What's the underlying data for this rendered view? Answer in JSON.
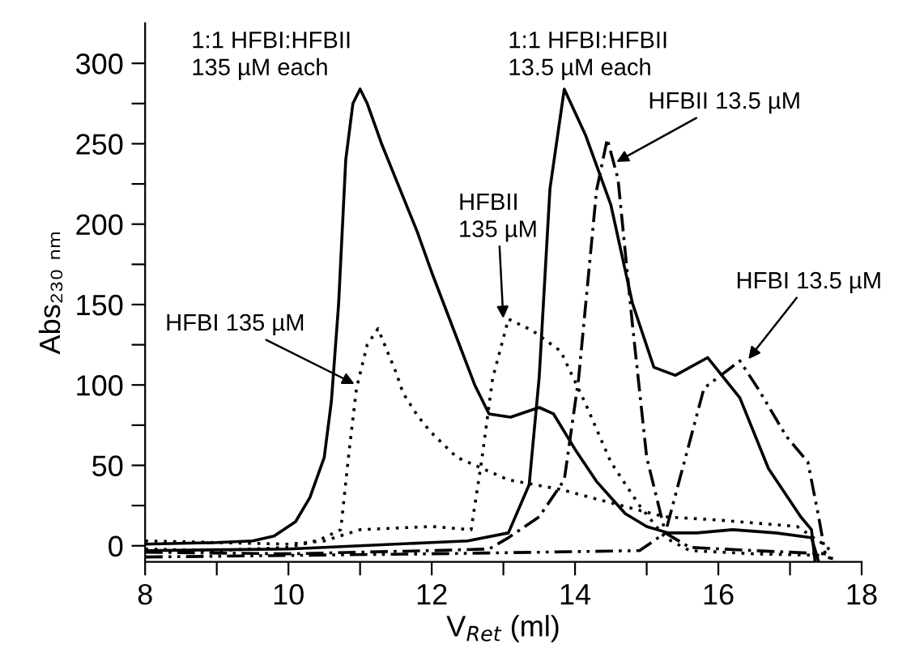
{
  "chart_data": {
    "type": "line",
    "xlabel": "V$_{Ret}$ (ml)",
    "ylabel": "Abs₂₃₀ ₙₘ",
    "xlim": [
      8,
      18
    ],
    "ylim": [
      -10,
      325
    ],
    "xticks": [
      8,
      {
        "value": 9,
        "label": null
      },
      10,
      {
        "value": 11,
        "label": null
      },
      12,
      {
        "value": 13,
        "label": null
      },
      14,
      {
        "value": 15,
        "label": null
      },
      16,
      {
        "value": 17,
        "label": null
      },
      18
    ],
    "yticks": [
      0,
      {
        "value": 25,
        "label": null
      },
      50,
      {
        "value": 75,
        "label": null
      },
      100,
      {
        "value": 125,
        "label": null
      },
      150,
      {
        "value": 175,
        "label": null
      },
      200,
      {
        "value": 225,
        "label": null
      },
      250,
      {
        "value": 275,
        "label": null
      },
      300
    ],
    "grid": false,
    "legend": false,
    "marker": "none",
    "series": [
      {
        "color": "#000000",
        "line_style": "solid",
        "x": [
          8,
          9,
          9.5,
          9.8,
          10.1,
          10.3,
          10.5,
          10.6,
          10.7,
          10.8,
          10.9,
          11.0,
          11.1,
          11.3,
          11.5,
          11.8,
          12.0,
          12.3,
          12.6,
          12.8,
          13.1,
          13.5,
          13.7,
          14.0,
          14.3,
          14.7,
          15.0,
          15.3,
          15.7,
          16.2,
          16.8,
          17.3,
          17.4
        ],
        "values": [
          1,
          2,
          3,
          6,
          15,
          30,
          55,
          90,
          150,
          240,
          275,
          284,
          275,
          250,
          228,
          195,
          170,
          135,
          100,
          82,
          80,
          86,
          82,
          60,
          40,
          20,
          12,
          8,
          8,
          10,
          8,
          5,
          -10
        ]
      },
      {
        "color": "#000000",
        "line_style": "solid",
        "x": [
          8,
          10,
          12,
          12.5,
          13.07,
          13.36,
          13.5,
          13.65,
          13.85,
          14.15,
          14.5,
          14.8,
          15.1,
          15.4,
          15.85,
          16.3,
          16.7,
          17.15,
          17.3,
          17.35
        ],
        "values": [
          -3,
          -2,
          2,
          3,
          8,
          38,
          105,
          222,
          284,
          255,
          212,
          151,
          111,
          106,
          117,
          92,
          48,
          18,
          10,
          -10
        ]
      },
      {
        "color": "#000000",
        "line_style": "dotted",
        "x": [
          8,
          9,
          10,
          10.3,
          10.5,
          10.73,
          10.85,
          10.95,
          11.1,
          11.25,
          11.5,
          11.6,
          11.8,
          11.98,
          12.35,
          13.07,
          13.8,
          14.9,
          15.26,
          16.0,
          17.1,
          17.5,
          17.6
        ],
        "values": [
          -2,
          -3,
          -1,
          2,
          5,
          10,
          60,
          98,
          125,
          135,
          108,
          95,
          81,
          71,
          55,
          41,
          35,
          22,
          18,
          16,
          12,
          0,
          -5
        ]
      },
      {
        "color": "#000000",
        "line_style": "dotted",
        "x": [
          8,
          9,
          10,
          10.5,
          11,
          12,
          12.55,
          12.7,
          12.85,
          13.07,
          13.4,
          13.8,
          14.15,
          14.5,
          14.9,
          15.26,
          15.6,
          16.5,
          17.5
        ],
        "values": [
          3,
          2,
          1,
          3,
          10,
          12,
          10,
          54,
          104,
          141,
          134,
          121,
          88,
          52,
          25,
          5,
          -3,
          -5,
          -6
        ]
      },
      {
        "color": "#000000",
        "line_style": "dashdot",
        "x": [
          8,
          10,
          12,
          12.8,
          13.07,
          13.5,
          13.85,
          14.05,
          14.3,
          14.45,
          14.6,
          14.8,
          15.0,
          15.26,
          15.6,
          16.5,
          17.5
        ],
        "values": [
          -4,
          -5,
          -3,
          -2,
          5,
          18,
          41,
          104,
          221,
          253,
          228,
          138,
          55,
          8,
          -1,
          -3,
          -5
        ]
      },
      {
        "color": "#000000",
        "line_style": "dashdotdot",
        "x": [
          8,
          10,
          12,
          13.5,
          14.9,
          15.26,
          15.5,
          15.8,
          16.3,
          16.55,
          16.95,
          17.25,
          17.4,
          17.5,
          17.6
        ],
        "values": [
          -7,
          -6,
          -5,
          -4,
          -3,
          8,
          48,
          98,
          115,
          98,
          68,
          52,
          18,
          -7,
          -8
        ]
      }
    ],
    "annotations": [
      {
        "text": "1:1 HFBI:HFBII\n135 µM each",
        "x": 11.0,
        "y": 284
      },
      {
        "text": "1:1 HFBI:HFBII\n13.5 µM each",
        "x": 13.85,
        "y": 284
      },
      {
        "text": "HFBI 135 µM",
        "x": 10.95,
        "y": 100
      },
      {
        "text": "HFBII\n135 µM",
        "x": 13.0,
        "y": 140
      },
      {
        "text": "HFBII 13.5 µM",
        "x": 14.55,
        "y": 238
      },
      {
        "text": "HFBI 13.5 µM",
        "x": 16.4,
        "y": 115
      }
    ]
  }
}
